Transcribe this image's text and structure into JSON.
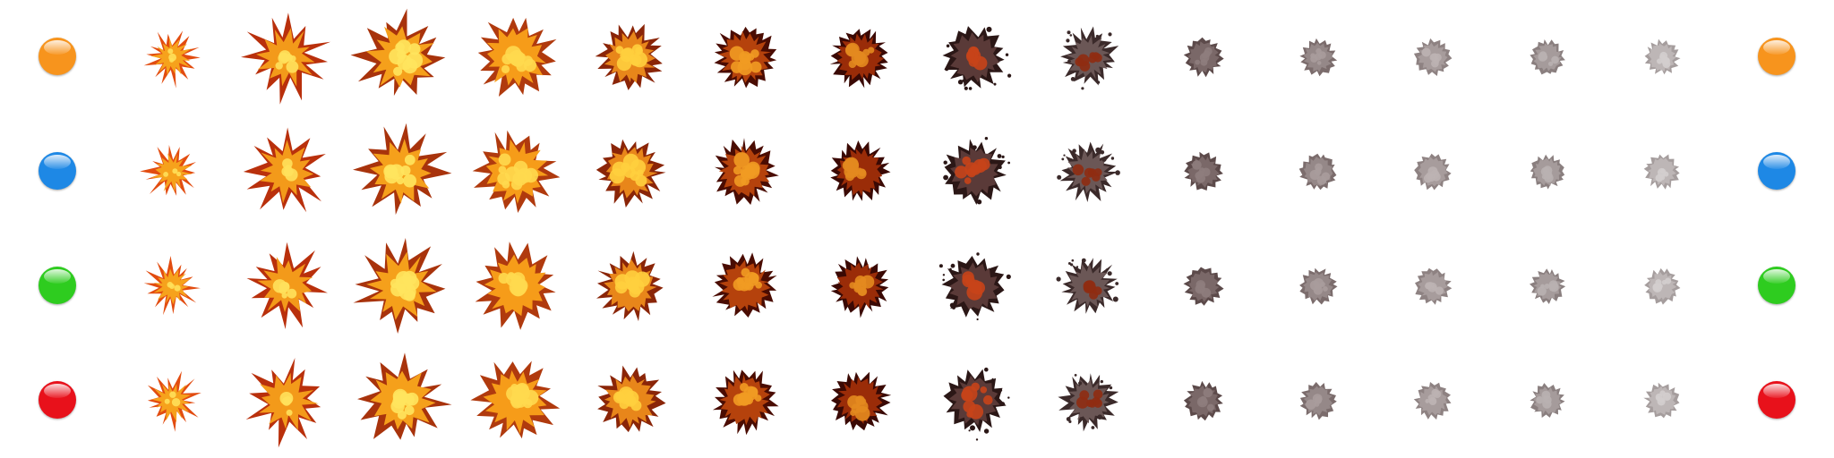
{
  "sheet": {
    "rows": [
      {
        "marker": "orange-orb",
        "color": "#f7941d"
      },
      {
        "marker": "blue-orb",
        "color": "#1e88e5"
      },
      {
        "marker": "green-orb",
        "color": "#2ecc1f"
      },
      {
        "marker": "red-orb",
        "color": "#e8111b"
      }
    ],
    "frames": [
      {
        "stage": "spark",
        "palette": [
          "#e24c10",
          "#f6a21c",
          "#ffe05a"
        ]
      },
      {
        "stage": "burst",
        "palette": [
          "#b9300c",
          "#f39a1a",
          "#ffe15c"
        ]
      },
      {
        "stage": "fireball",
        "palette": [
          "#a8330c",
          "#f5a01b",
          "#ffe45e"
        ]
      },
      {
        "stage": "fireball-peak",
        "palette": [
          "#b03a0e",
          "#f69c19",
          "#ffd94f"
        ]
      },
      {
        "stage": "fireball-breakup",
        "palette": [
          "#8a2508",
          "#e8861a",
          "#ffcf3e"
        ]
      },
      {
        "stage": "embers",
        "palette": [
          "#4a0c02",
          "#b5420c",
          "#f19b22"
        ]
      },
      {
        "stage": "embers-dark",
        "palette": [
          "#3a0904",
          "#9a2c08",
          "#e38a1f"
        ]
      },
      {
        "stage": "char-smoke",
        "palette": [
          "#2b1716",
          "#5a3a38",
          "#c7441a"
        ]
      },
      {
        "stage": "smoke-debris",
        "palette": [
          "#3b2a2a",
          "#6b5756",
          "#8f2c12"
        ]
      },
      {
        "stage": "smoke",
        "palette": [
          "#5c4a4a",
          "#7a6868",
          "#8e7d7d"
        ]
      },
      {
        "stage": "smoke-light",
        "palette": [
          "#7b6c6c",
          "#958888",
          "#a89c9c"
        ]
      },
      {
        "stage": "smoke-lighter",
        "palette": [
          "#8e8282",
          "#a79c9c",
          "#bcb3b3"
        ]
      },
      {
        "stage": "smoke-faint",
        "palette": [
          "#8a7f7f",
          "#a59b9b",
          "#b9b1b1"
        ]
      },
      {
        "stage": "smoke-fading",
        "palette": [
          "#a59d9d",
          "#bdb6b6",
          "#d3cece"
        ]
      }
    ]
  }
}
